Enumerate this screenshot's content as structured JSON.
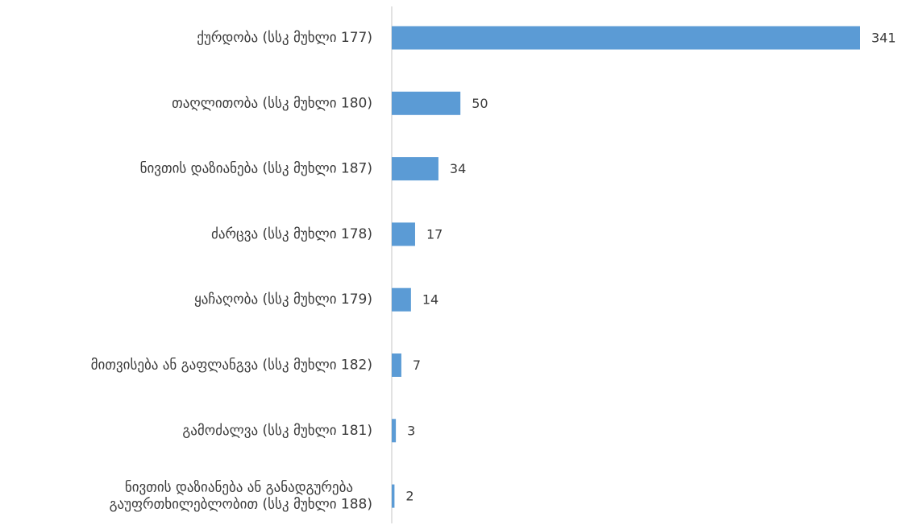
{
  "chart_data": {
    "type": "bar",
    "orientation": "horizontal",
    "categories": [
      "ქურდობა (სსკ მუხლი 177)",
      "თაღლითობა (სსკ მუხლი 180)",
      "ნივთის დაზიანება (სსკ მუხლი 187)",
      "ძარცვა (სსკ მუხლი 178)",
      "ყაჩაღობა (სსკ მუხლი 179)",
      "მითვისება ან გაფლანგვა (სსკ მუხლი 182)",
      "გამოძალვა (სსკ მუხლი 181)",
      [
        "ნივთის დაზიანება ან განადგურება",
        "გაუფრთხილებლობით  (სსკ  მუხლი 188)"
      ]
    ],
    "values": [
      341,
      50,
      34,
      17,
      14,
      7,
      3,
      2
    ],
    "data_labels": [
      "341",
      "50",
      "34",
      "17",
      "14",
      "7",
      "3",
      "2"
    ],
    "xlim": [
      0,
      360
    ],
    "grid": false,
    "legend": "none",
    "title": "",
    "xlabel": "",
    "ylabel": "",
    "colors": {
      "bar": "#5b9bd5",
      "axis": "#d9d9d9",
      "text": "#3b3b3b"
    }
  }
}
